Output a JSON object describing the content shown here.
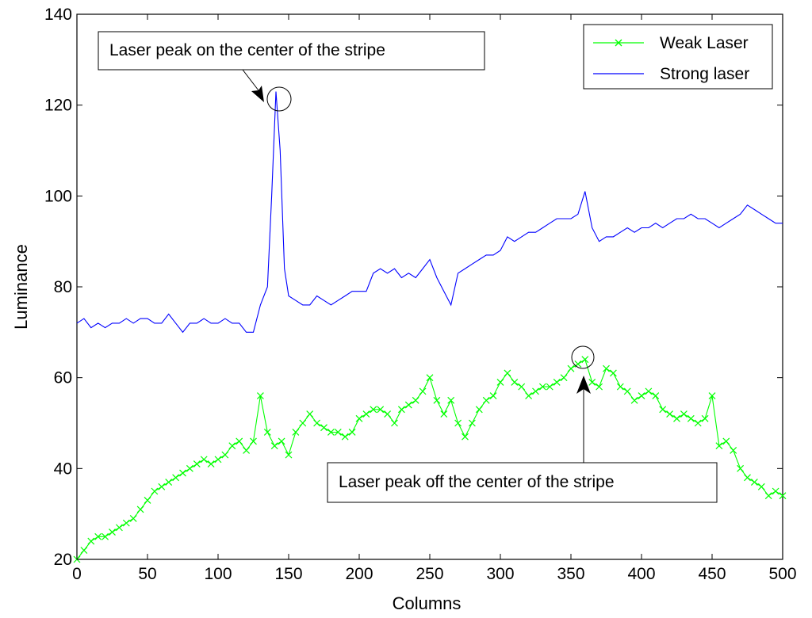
{
  "chart_data": {
    "type": "line",
    "title": "",
    "xlabel": "Columns",
    "ylabel": "Luminance",
    "xlim": [
      0,
      500
    ],
    "ylim": [
      20,
      140
    ],
    "xticks": [
      0,
      50,
      100,
      150,
      200,
      250,
      300,
      350,
      400,
      450,
      500
    ],
    "yticks": [
      20,
      40,
      60,
      80,
      100,
      120,
      140
    ],
    "grid": false,
    "legend_position": "top-right",
    "series": [
      {
        "name": "Weak Laser",
        "color": "#00ff00",
        "marker": "x",
        "points": [
          [
            0,
            20
          ],
          [
            5,
            22
          ],
          [
            10,
            24
          ],
          [
            15,
            25
          ],
          [
            20,
            25
          ],
          [
            25,
            26
          ],
          [
            30,
            27
          ],
          [
            35,
            28
          ],
          [
            40,
            29
          ],
          [
            45,
            31
          ],
          [
            50,
            33
          ],
          [
            55,
            35
          ],
          [
            60,
            36
          ],
          [
            65,
            37
          ],
          [
            70,
            38
          ],
          [
            75,
            39
          ],
          [
            80,
            40
          ],
          [
            85,
            41
          ],
          [
            90,
            42
          ],
          [
            95,
            41
          ],
          [
            100,
            42
          ],
          [
            105,
            43
          ],
          [
            110,
            45
          ],
          [
            115,
            46
          ],
          [
            120,
            44
          ],
          [
            125,
            46
          ],
          [
            130,
            56
          ],
          [
            135,
            48
          ],
          [
            140,
            45
          ],
          [
            145,
            46
          ],
          [
            150,
            43
          ],
          [
            155,
            48
          ],
          [
            160,
            50
          ],
          [
            165,
            52
          ],
          [
            170,
            50
          ],
          [
            175,
            49
          ],
          [
            180,
            48
          ],
          [
            185,
            48
          ],
          [
            190,
            47
          ],
          [
            195,
            48
          ],
          [
            200,
            51
          ],
          [
            205,
            52
          ],
          [
            210,
            53
          ],
          [
            215,
            53
          ],
          [
            220,
            52
          ],
          [
            225,
            50
          ],
          [
            230,
            53
          ],
          [
            235,
            54
          ],
          [
            240,
            55
          ],
          [
            245,
            57
          ],
          [
            250,
            60
          ],
          [
            255,
            55
          ],
          [
            260,
            52
          ],
          [
            265,
            55
          ],
          [
            270,
            50
          ],
          [
            275,
            47
          ],
          [
            280,
            50
          ],
          [
            285,
            53
          ],
          [
            290,
            55
          ],
          [
            295,
            56
          ],
          [
            300,
            59
          ],
          [
            305,
            61
          ],
          [
            310,
            59
          ],
          [
            315,
            58
          ],
          [
            320,
            56
          ],
          [
            325,
            57
          ],
          [
            330,
            58
          ],
          [
            335,
            58
          ],
          [
            340,
            59
          ],
          [
            345,
            60
          ],
          [
            350,
            62
          ],
          [
            355,
            63
          ],
          [
            360,
            64
          ],
          [
            365,
            59
          ],
          [
            370,
            58
          ],
          [
            375,
            62
          ],
          [
            380,
            61
          ],
          [
            385,
            58
          ],
          [
            390,
            57
          ],
          [
            395,
            55
          ],
          [
            400,
            56
          ],
          [
            405,
            57
          ],
          [
            410,
            56
          ],
          [
            415,
            53
          ],
          [
            420,
            52
          ],
          [
            425,
            51
          ],
          [
            430,
            52
          ],
          [
            435,
            51
          ],
          [
            440,
            50
          ],
          [
            445,
            51
          ],
          [
            450,
            56
          ],
          [
            455,
            45
          ],
          [
            460,
            46
          ],
          [
            465,
            44
          ],
          [
            470,
            40
          ],
          [
            475,
            38
          ],
          [
            480,
            37
          ],
          [
            485,
            36
          ],
          [
            490,
            34
          ],
          [
            495,
            35
          ],
          [
            500,
            34
          ]
        ]
      },
      {
        "name": "Strong laser",
        "color": "#0000ff",
        "marker": "none",
        "points": [
          [
            0,
            72
          ],
          [
            5,
            73
          ],
          [
            10,
            71
          ],
          [
            15,
            72
          ],
          [
            20,
            71
          ],
          [
            25,
            72
          ],
          [
            30,
            72
          ],
          [
            35,
            73
          ],
          [
            40,
            72
          ],
          [
            45,
            73
          ],
          [
            50,
            73
          ],
          [
            55,
            72
          ],
          [
            60,
            72
          ],
          [
            65,
            74
          ],
          [
            70,
            72
          ],
          [
            75,
            70
          ],
          [
            80,
            72
          ],
          [
            85,
            72
          ],
          [
            90,
            73
          ],
          [
            95,
            72
          ],
          [
            100,
            72
          ],
          [
            105,
            73
          ],
          [
            110,
            72
          ],
          [
            115,
            72
          ],
          [
            120,
            70
          ],
          [
            125,
            70
          ],
          [
            130,
            76
          ],
          [
            135,
            80
          ],
          [
            138,
            100
          ],
          [
            141,
            123
          ],
          [
            144,
            110
          ],
          [
            147,
            84
          ],
          [
            150,
            78
          ],
          [
            155,
            77
          ],
          [
            160,
            76
          ],
          [
            165,
            76
          ],
          [
            170,
            78
          ],
          [
            175,
            77
          ],
          [
            180,
            76
          ],
          [
            185,
            77
          ],
          [
            190,
            78
          ],
          [
            195,
            79
          ],
          [
            200,
            79
          ],
          [
            205,
            79
          ],
          [
            210,
            83
          ],
          [
            215,
            84
          ],
          [
            220,
            83
          ],
          [
            225,
            84
          ],
          [
            230,
            82
          ],
          [
            235,
            83
          ],
          [
            240,
            82
          ],
          [
            245,
            84
          ],
          [
            250,
            86
          ],
          [
            255,
            82
          ],
          [
            260,
            79
          ],
          [
            265,
            76
          ],
          [
            270,
            83
          ],
          [
            275,
            84
          ],
          [
            280,
            85
          ],
          [
            285,
            86
          ],
          [
            290,
            87
          ],
          [
            295,
            87
          ],
          [
            300,
            88
          ],
          [
            305,
            91
          ],
          [
            310,
            90
          ],
          [
            315,
            91
          ],
          [
            320,
            92
          ],
          [
            325,
            92
          ],
          [
            330,
            93
          ],
          [
            335,
            94
          ],
          [
            340,
            95
          ],
          [
            345,
            95
          ],
          [
            350,
            95
          ],
          [
            355,
            96
          ],
          [
            360,
            101
          ],
          [
            365,
            93
          ],
          [
            370,
            90
          ],
          [
            375,
            91
          ],
          [
            380,
            91
          ],
          [
            385,
            92
          ],
          [
            390,
            93
          ],
          [
            395,
            92
          ],
          [
            400,
            93
          ],
          [
            405,
            93
          ],
          [
            410,
            94
          ],
          [
            415,
            93
          ],
          [
            420,
            94
          ],
          [
            425,
            95
          ],
          [
            430,
            95
          ],
          [
            435,
            96
          ],
          [
            440,
            95
          ],
          [
            445,
            95
          ],
          [
            450,
            94
          ],
          [
            455,
            93
          ],
          [
            460,
            94
          ],
          [
            465,
            95
          ],
          [
            470,
            96
          ],
          [
            475,
            98
          ],
          [
            480,
            97
          ],
          [
            485,
            96
          ],
          [
            490,
            95
          ],
          [
            495,
            94
          ],
          [
            500,
            94
          ]
        ]
      }
    ],
    "annotations": [
      {
        "text": "Laser peak on the center of the stripe",
        "target": [
          141,
          123
        ]
      },
      {
        "text": "Laser peak off the center of the stripe",
        "target": [
          360,
          64
        ]
      }
    ]
  }
}
